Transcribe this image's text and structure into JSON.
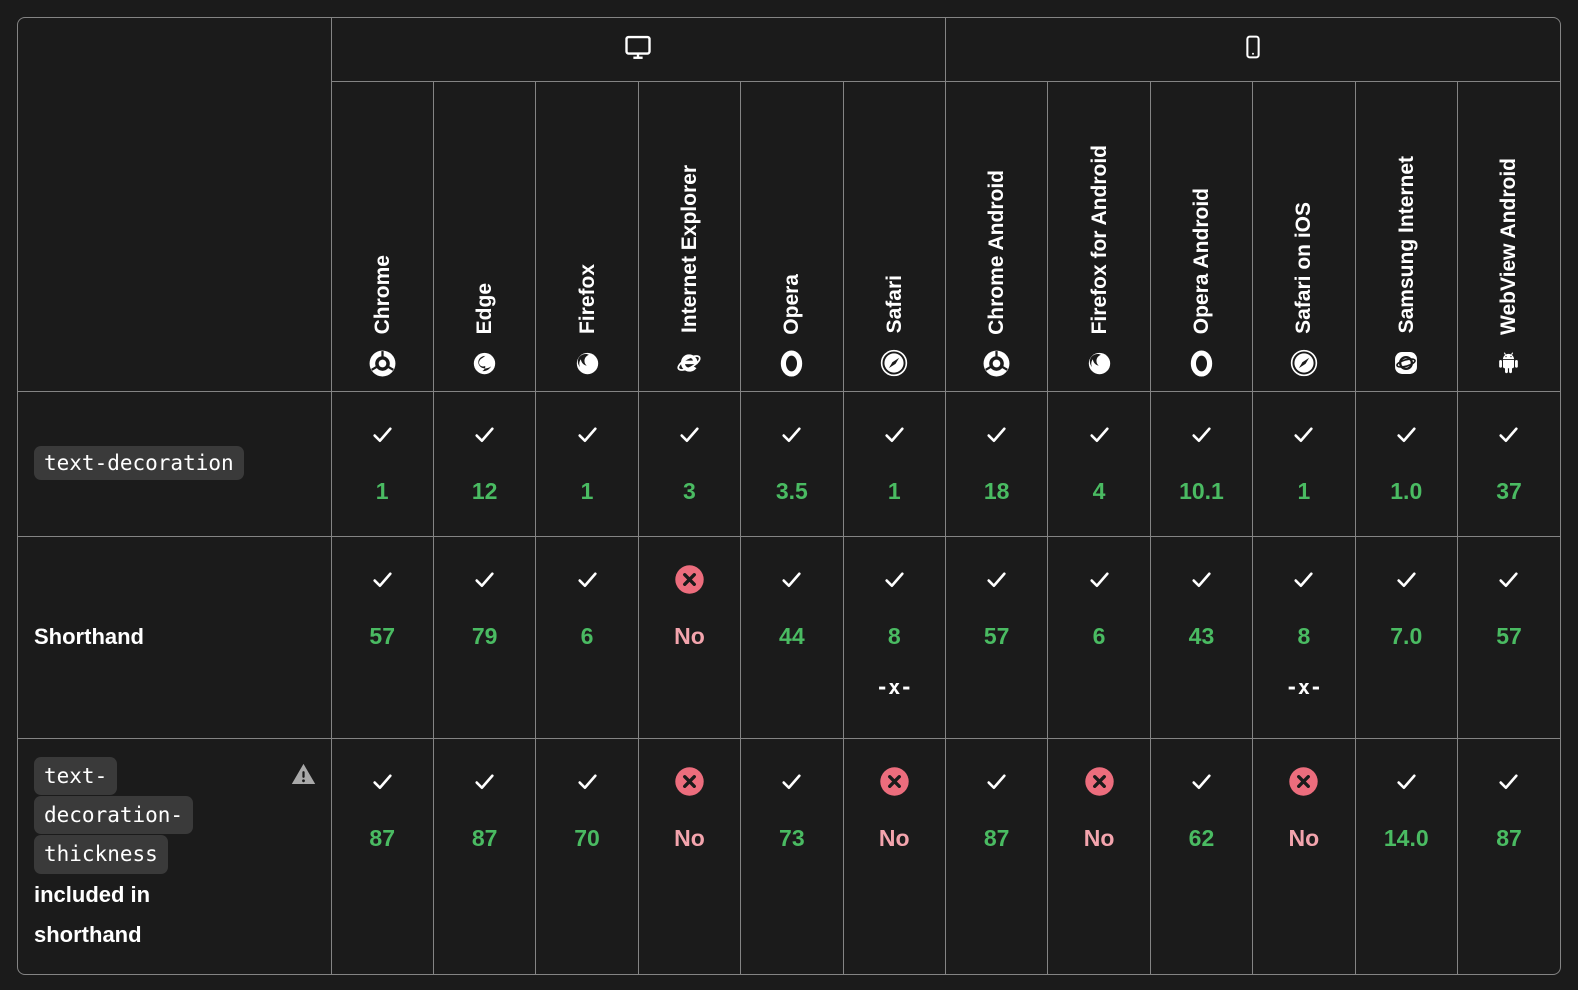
{
  "colors": {
    "background": "#1b1b1b",
    "grid_border": "#848484",
    "supported_version": "#4abb62",
    "unsupported_circle": "#ec6d7d",
    "unsupported_text": "#f3a4ad",
    "code_pill_bg": "#3a3a3a",
    "check": "#ffffff",
    "warning": "#a9a9a9"
  },
  "header": {
    "platforms": [
      {
        "name": "desktop",
        "icon": "desktop-icon",
        "span": 6
      },
      {
        "name": "mobile",
        "icon": "mobile-icon",
        "span": 6
      }
    ],
    "browsers": [
      {
        "label": "Chrome",
        "icon": "chrome-icon"
      },
      {
        "label": "Edge",
        "icon": "edge-icon"
      },
      {
        "label": "Firefox",
        "icon": "firefox-icon"
      },
      {
        "label": "Internet Explorer",
        "icon": "internet-explorer-icon"
      },
      {
        "label": "Opera",
        "icon": "opera-icon"
      },
      {
        "label": "Safari",
        "icon": "safari-icon"
      },
      {
        "label": "Chrome Android",
        "icon": "chrome-icon"
      },
      {
        "label": "Firefox for Android",
        "icon": "firefox-icon"
      },
      {
        "label": "Opera Android",
        "icon": "opera-icon"
      },
      {
        "label": "Safari on iOS",
        "icon": "safari-icon"
      },
      {
        "label": "Samsung Internet",
        "icon": "samsung-internet-icon"
      },
      {
        "label": "WebView Android",
        "icon": "webview-android-icon"
      }
    ]
  },
  "rows": [
    {
      "feature": {
        "code": "text-decoration",
        "code_lines": [
          "text-decoration"
        ],
        "text": "",
        "warning": false
      },
      "support": [
        {
          "status": "yes",
          "version": "1"
        },
        {
          "status": "yes",
          "version": "12"
        },
        {
          "status": "yes",
          "version": "1"
        },
        {
          "status": "yes",
          "version": "3"
        },
        {
          "status": "yes",
          "version": "3.5"
        },
        {
          "status": "yes",
          "version": "1"
        },
        {
          "status": "yes",
          "version": "18"
        },
        {
          "status": "yes",
          "version": "4"
        },
        {
          "status": "yes",
          "version": "10.1"
        },
        {
          "status": "yes",
          "version": "1"
        },
        {
          "status": "yes",
          "version": "1.0"
        },
        {
          "status": "yes",
          "version": "37"
        }
      ]
    },
    {
      "feature": {
        "code": "",
        "code_lines": [],
        "text": "Shorthand",
        "warning": false
      },
      "support": [
        {
          "status": "yes",
          "version": "57"
        },
        {
          "status": "yes",
          "version": "79"
        },
        {
          "status": "yes",
          "version": "6"
        },
        {
          "status": "no",
          "version": "No"
        },
        {
          "status": "yes",
          "version": "44"
        },
        {
          "status": "yes",
          "version": "8",
          "footnote": "-x-"
        },
        {
          "status": "yes",
          "version": "57"
        },
        {
          "status": "yes",
          "version": "6"
        },
        {
          "status": "yes",
          "version": "43"
        },
        {
          "status": "yes",
          "version": "8",
          "footnote": "-x-"
        },
        {
          "status": "yes",
          "version": "7.0"
        },
        {
          "status": "yes",
          "version": "57"
        }
      ]
    },
    {
      "feature": {
        "code": "text-decoration-thickness",
        "code_lines": [
          "text-",
          "decoration-",
          "thickness"
        ],
        "text": "included in shorthand",
        "warning": true
      },
      "support": [
        {
          "status": "yes",
          "version": "87"
        },
        {
          "status": "yes",
          "version": "87"
        },
        {
          "status": "yes",
          "version": "70"
        },
        {
          "status": "no",
          "version": "No"
        },
        {
          "status": "yes",
          "version": "73"
        },
        {
          "status": "no",
          "version": "No"
        },
        {
          "status": "yes",
          "version": "87"
        },
        {
          "status": "no",
          "version": "No"
        },
        {
          "status": "yes",
          "version": "62"
        },
        {
          "status": "no",
          "version": "No"
        },
        {
          "status": "yes",
          "version": "14.0"
        },
        {
          "status": "yes",
          "version": "87"
        }
      ]
    }
  ]
}
